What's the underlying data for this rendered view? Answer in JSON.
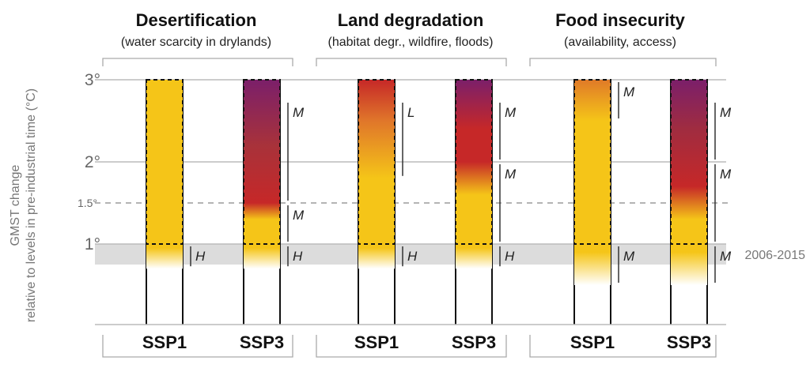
{
  "y_axis": {
    "label_line1": "GMST change",
    "label_line2": "relative to levels in pre-industrial time (°C)",
    "ticks": [
      {
        "value": 3,
        "label": "3°",
        "style": "solid"
      },
      {
        "value": 2,
        "label": "2°",
        "style": "solid"
      },
      {
        "value": 1.5,
        "label": "1.5°",
        "style": "dashed"
      },
      {
        "value": 1,
        "label": "1°",
        "style": "solid"
      }
    ]
  },
  "reference_band": {
    "label": "2006-2015",
    "from": 0.75,
    "to": 1.0
  },
  "colors": {
    "undetectable": "#ffffff",
    "moderate": "#f5c518",
    "high": "#c62828",
    "very_high": "#7b1f6a",
    "band": "#dcdcdc",
    "grid": "#bbbbbb"
  },
  "panels": [
    {
      "title": "Desertification",
      "subtitle": "(water scarcity in drylands)",
      "bars": [
        {
          "ssp": "SSP1",
          "stops": [
            [
              0.7,
              "#ffffff"
            ],
            [
              0.95,
              "#f5c518"
            ],
            [
              3.0,
              "#f5c518"
            ]
          ],
          "confidence": [
            {
              "from": 0.7,
              "to": 1.0,
              "label": "H"
            }
          ]
        },
        {
          "ssp": "SSP3",
          "stops": [
            [
              0.7,
              "#ffffff"
            ],
            [
              0.95,
              "#f5c518"
            ],
            [
              1.3,
              "#f5c518"
            ],
            [
              1.5,
              "#c62828"
            ],
            [
              2.2,
              "#a8323a"
            ],
            [
              3.0,
              "#7b1f6a"
            ]
          ],
          "confidence": [
            {
              "from": 0.7,
              "to": 1.0,
              "label": "H"
            },
            {
              "from": 1.0,
              "to": 1.5,
              "label": "M"
            },
            {
              "from": 1.5,
              "to": 2.75,
              "label": "M"
            }
          ]
        }
      ]
    },
    {
      "title": "Land degradation",
      "subtitle": "(habitat degr., wildfire, floods)",
      "bars": [
        {
          "ssp": "SSP1",
          "stops": [
            [
              0.7,
              "#ffffff"
            ],
            [
              0.95,
              "#f5c518"
            ],
            [
              1.8,
              "#f5c518"
            ],
            [
              2.5,
              "#e0762a"
            ],
            [
              3.0,
              "#c62828"
            ]
          ],
          "confidence": [
            {
              "from": 0.7,
              "to": 1.0,
              "label": "H"
            },
            {
              "from": 1.8,
              "to": 2.75,
              "label": "L"
            }
          ]
        },
        {
          "ssp": "SSP3",
          "stops": [
            [
              0.7,
              "#ffffff"
            ],
            [
              0.95,
              "#f5c518"
            ],
            [
              1.6,
              "#f5c518"
            ],
            [
              2.0,
              "#c62828"
            ],
            [
              2.4,
              "#c62828"
            ],
            [
              3.0,
              "#7b1f6a"
            ]
          ],
          "confidence": [
            {
              "from": 0.7,
              "to": 1.0,
              "label": "H"
            },
            {
              "from": 1.0,
              "to": 2.0,
              "label": "M"
            },
            {
              "from": 2.0,
              "to": 2.75,
              "label": "M"
            }
          ]
        }
      ]
    },
    {
      "title": "Food insecurity",
      "subtitle": "(availability, access)",
      "bars": [
        {
          "ssp": "SSP1",
          "stops": [
            [
              0.5,
              "#ffffff"
            ],
            [
              0.9,
              "#f5c518"
            ],
            [
              2.5,
              "#f5c518"
            ],
            [
              3.0,
              "#e07a28"
            ]
          ],
          "confidence": [
            {
              "from": 0.5,
              "to": 1.0,
              "label": "M"
            },
            {
              "from": 2.5,
              "to": 3.0,
              "label": "M"
            }
          ]
        },
        {
          "ssp": "SSP3",
          "stops": [
            [
              0.5,
              "#ffffff"
            ],
            [
              0.9,
              "#f5c518"
            ],
            [
              1.3,
              "#f5c518"
            ],
            [
              1.7,
              "#c62828"
            ],
            [
              2.4,
              "#a02c40"
            ],
            [
              3.0,
              "#7b1f6a"
            ]
          ],
          "confidence": [
            {
              "from": 0.5,
              "to": 1.0,
              "label": "M"
            },
            {
              "from": 1.0,
              "to": 2.0,
              "label": "M"
            },
            {
              "from": 2.0,
              "to": 2.75,
              "label": "M"
            }
          ]
        }
      ]
    }
  ]
}
